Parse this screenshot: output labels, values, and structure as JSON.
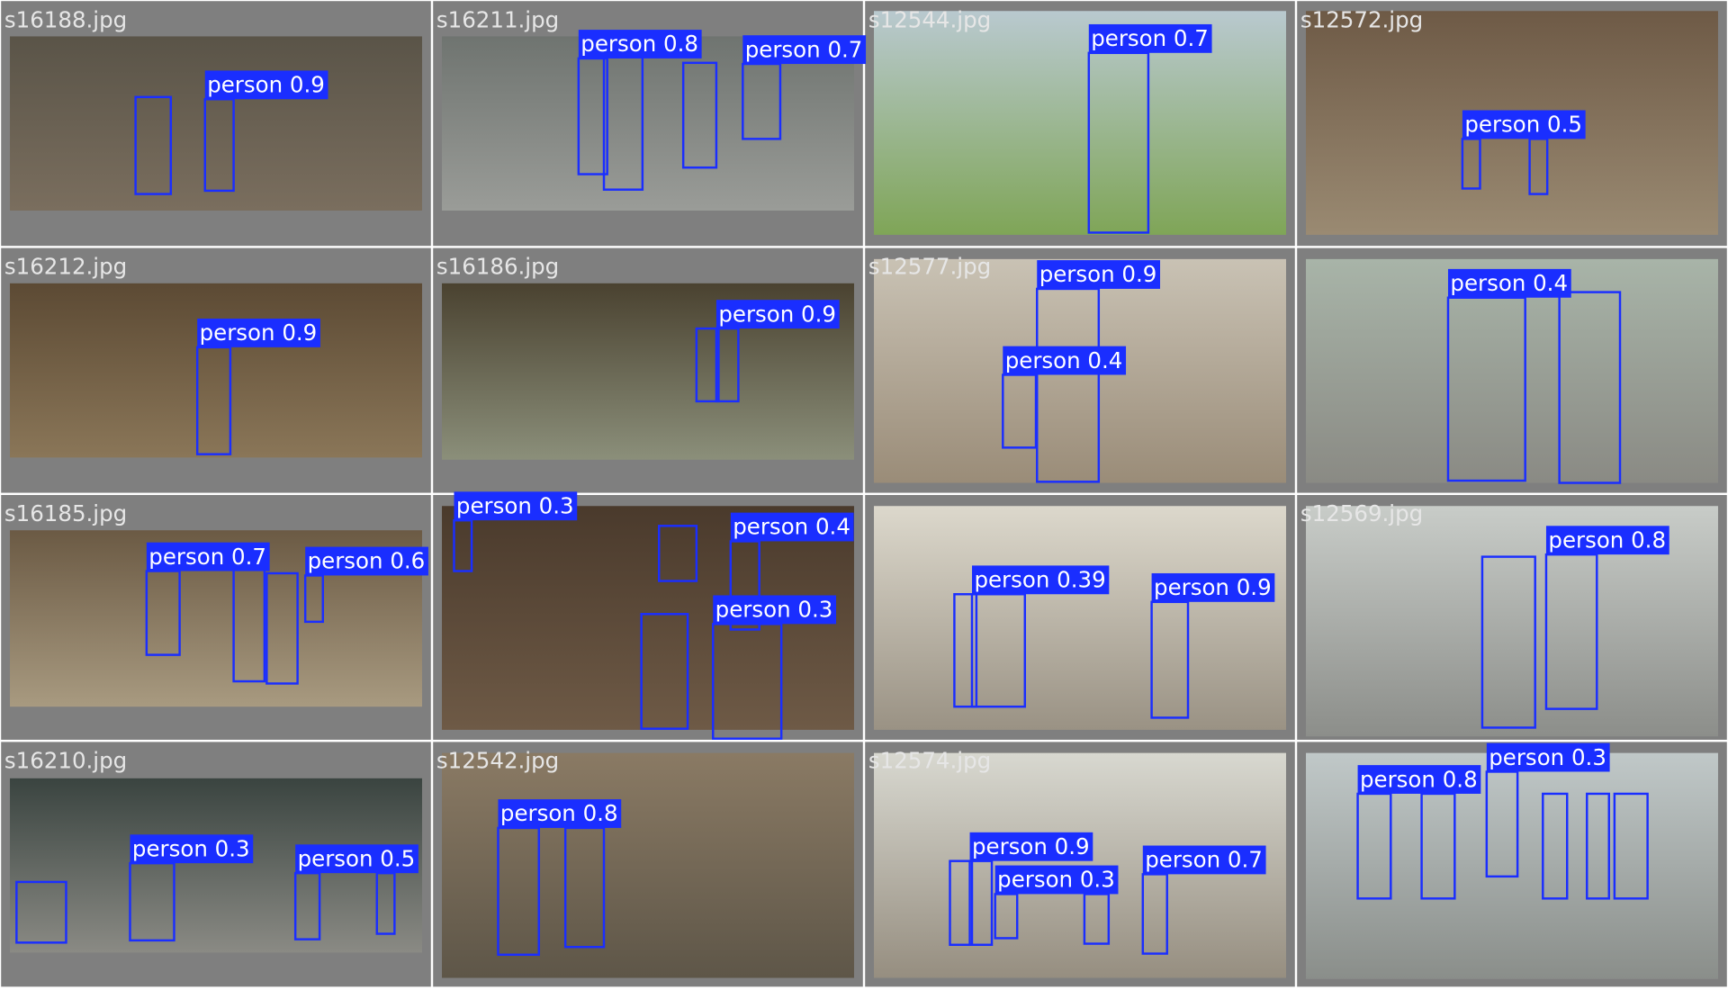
{
  "tiles": [
    {
      "filename": "s16188.jpg",
      "labels": [
        "person 0.9"
      ]
    },
    {
      "filename": "s16211.jpg",
      "labels": [
        "person 0.8",
        "person 0.7"
      ]
    },
    {
      "filename": "s12544.jpg",
      "labels": [
        "person 0.7"
      ]
    },
    {
      "filename": "s12572.jpg",
      "labels": [
        "person 0.5"
      ]
    },
    {
      "filename": "s16212.jpg",
      "labels": [
        "person 0.9"
      ]
    },
    {
      "filename": "s16186.jpg",
      "labels": [
        "person 0.9"
      ]
    },
    {
      "filename": "s12577.jpg",
      "labels": [
        "person 0.9",
        "person 0.4"
      ]
    },
    {
      "labels": [
        "person 0.4"
      ]
    },
    {
      "filename": "s16185.jpg",
      "labels": [
        "person 0.7",
        "person 0.6"
      ]
    },
    {
      "labels": [
        "person 0.3",
        "person 0.4",
        "person 0.3"
      ]
    },
    {
      "labels": [
        "person 0.39",
        "person 0.9"
      ]
    },
    {
      "filename": "s12569.jpg",
      "labels": [
        "person 0.8"
      ]
    },
    {
      "filename": "s16210.jpg",
      "labels": [
        "person 0.3",
        "person 0.5"
      ]
    },
    {
      "filename": "s12542.jpg",
      "labels": [
        "person 0.8"
      ]
    },
    {
      "filename": "s12574.jpg",
      "labels": [
        "person 0.9",
        "person 0.3",
        "person 0.7"
      ]
    },
    {
      "labels": [
        "person 0.8",
        "person 0.3"
      ]
    }
  ]
}
